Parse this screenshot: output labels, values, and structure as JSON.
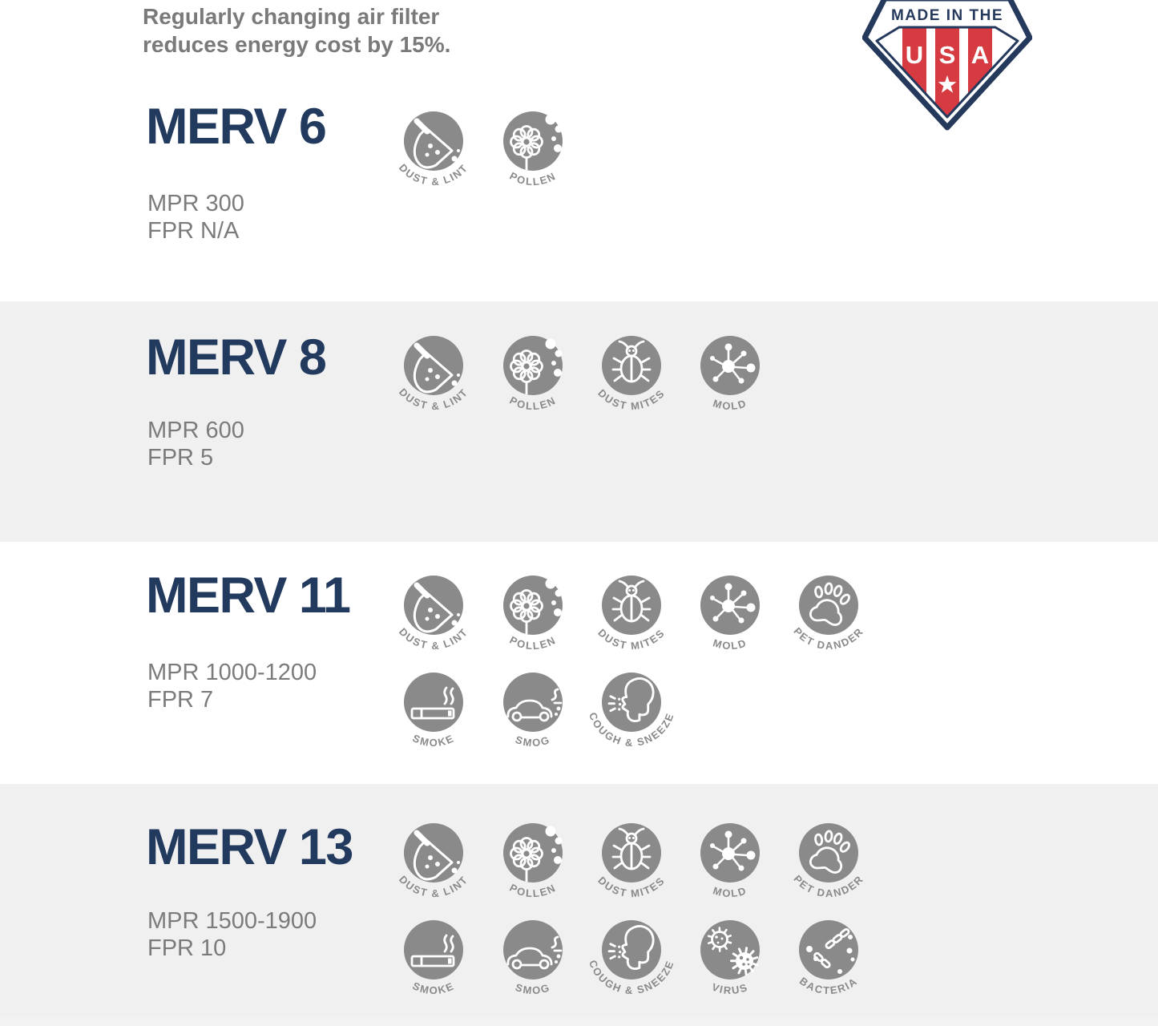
{
  "header": {
    "note_line1": "Regularly changing air filter",
    "note_line2": "reduces energy cost by 15%.",
    "badge": {
      "top_text": "MADE IN THE",
      "letters": [
        "U",
        "S",
        "A"
      ],
      "star_icon": "star"
    }
  },
  "colors": {
    "heading_navy": "#223A5E",
    "badge_navy": "#24395C",
    "badge_red": "#D63B42",
    "icon_gray": "#8A8A8A",
    "band_gray": "#F0F0F0",
    "text_gray": "#7B7B7B",
    "white": "#FFFFFF"
  },
  "sections": [
    {
      "title": "MERV 6",
      "mpr": "MPR 300",
      "fpr": "FPR N/A",
      "icon_rows": [
        [
          "dust-lint",
          "pollen"
        ]
      ]
    },
    {
      "title": "MERV 8",
      "mpr": "MPR 600",
      "fpr": "FPR 5",
      "icon_rows": [
        [
          "dust-lint",
          "pollen",
          "dust-mites",
          "mold"
        ]
      ]
    },
    {
      "title": "MERV 11",
      "mpr": "MPR 1000-1200",
      "fpr": "FPR 7",
      "icon_rows": [
        [
          "dust-lint",
          "pollen",
          "dust-mites",
          "mold",
          "pet-dander"
        ],
        [
          "smoke",
          "smog",
          "cough-sneeze"
        ]
      ]
    },
    {
      "title": "MERV 13",
      "mpr": "MPR 1500-1900",
      "fpr": "FPR 10",
      "icon_rows": [
        [
          "dust-lint",
          "pollen",
          "dust-mites",
          "mold",
          "pet-dander"
        ],
        [
          "smoke",
          "smog",
          "cough-sneeze",
          "virus",
          "bacteria"
        ]
      ]
    }
  ],
  "icon_labels": {
    "dust-lint": "DUST & LINT",
    "pollen": "POLLEN",
    "dust-mites": "DUST MITES",
    "mold": "MOLD",
    "pet-dander": "PET DANDER",
    "smoke": "SMOKE",
    "smog": "SMOG",
    "cough-sneeze": "COUGH & SNEEZE",
    "virus": "VIRUS",
    "bacteria": "BACTERIA"
  }
}
